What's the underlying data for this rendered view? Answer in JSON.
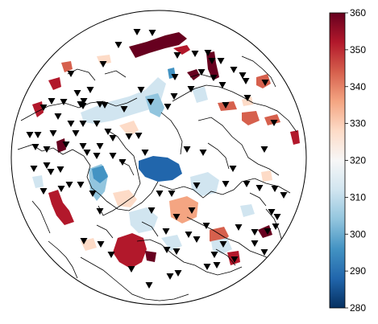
{
  "chart_data": {
    "type": "map",
    "projection": "orthographic-north-polar",
    "colorbar": {
      "min": 280,
      "max": 360,
      "ticks": [
        280,
        290,
        300,
        310,
        320,
        330,
        340,
        350,
        360
      ],
      "tick_labels": [
        "280",
        "290",
        "300",
        "310",
        "320",
        "330",
        "340",
        "350",
        "360"
      ],
      "colormap": "RdBu_r",
      "stops": [
        "#053061",
        "#2166ac",
        "#4393c3",
        "#92c5de",
        "#d1e5f0",
        "#f7f7f7",
        "#fddbc7",
        "#f4a582",
        "#d6604d",
        "#b2182b",
        "#67001f"
      ]
    },
    "marker": {
      "shape": "triangle-down",
      "color": "#000000"
    }
  }
}
